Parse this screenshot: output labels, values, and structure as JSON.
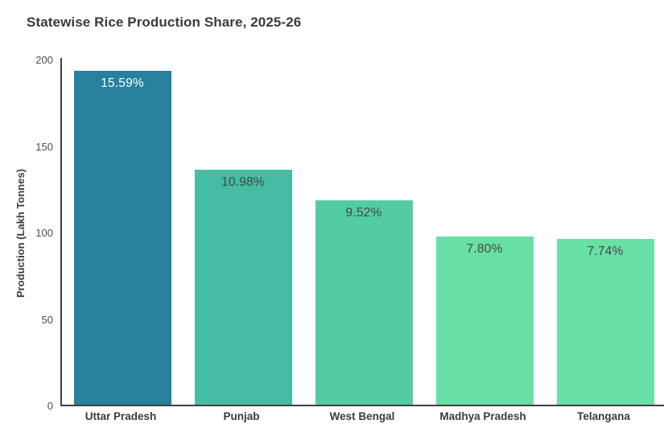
{
  "chart_data": {
    "type": "bar",
    "title": "Statewise Rice Production Share, 2025-26",
    "xlabel": "",
    "ylabel": "Production (Lakh Tonnes)",
    "categories": [
      "Uttar Pradesh",
      "Punjab",
      "West Bengal",
      "Madhya Pradesh",
      "Telangana"
    ],
    "values": [
      193,
      136,
      118,
      97,
      96
    ],
    "bar_labels": [
      "15.59%",
      "10.98%",
      "9.52%",
      "7.80%",
      "7.74%"
    ],
    "bar_colors": [
      "#27809D",
      "#45BDA3",
      "#53CCA4",
      "#68E0A5",
      "#69E0A6"
    ],
    "bar_label_colors": [
      "#FFFFFF",
      "#454545",
      "#454545",
      "#454545",
      "#454545"
    ],
    "ylim": [
      0,
      200
    ],
    "yticks": [
      0,
      50,
      100,
      150,
      200
    ],
    "grid": false,
    "legend": false,
    "units": "Lakh Tonnes",
    "axis_color": "#3F3F3F",
    "tick_label_color": "#4C4C4C",
    "title_color": "#3A3A3A"
  }
}
